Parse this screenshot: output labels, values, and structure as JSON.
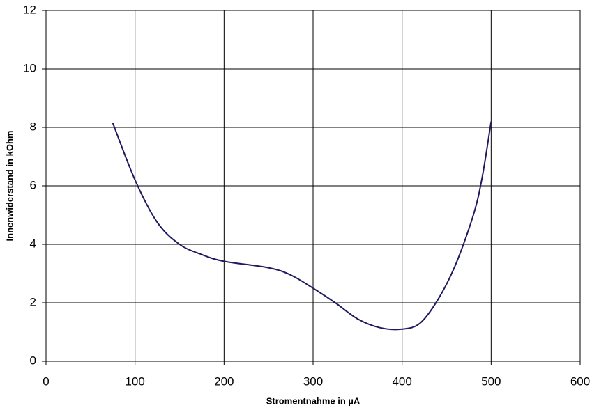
{
  "chart_data": {
    "type": "line",
    "xlabel": "Stromentnahme in µA",
    "ylabel": "Innenwiderstand in kOhm",
    "x": [
      75,
      100,
      125,
      150,
      175,
      200,
      250,
      275,
      300,
      325,
      350,
      375,
      400,
      420,
      440,
      460,
      480,
      490,
      500
    ],
    "series": [
      {
        "name": "Innenwiderstand",
        "color": "#1f1a5e",
        "values": [
          8.15,
          6.2,
          4.75,
          4.0,
          3.65,
          3.42,
          3.2,
          2.95,
          2.5,
          2.0,
          1.45,
          1.15,
          1.1,
          1.3,
          2.1,
          3.3,
          5.0,
          6.3,
          8.2
        ]
      }
    ],
    "xlim": [
      0,
      600
    ],
    "xticks": [
      0,
      100,
      200,
      300,
      400,
      500,
      600
    ],
    "ylim": [
      0,
      12
    ],
    "yticks": [
      0,
      2,
      4,
      6,
      8,
      10,
      12
    ],
    "grid": true
  }
}
